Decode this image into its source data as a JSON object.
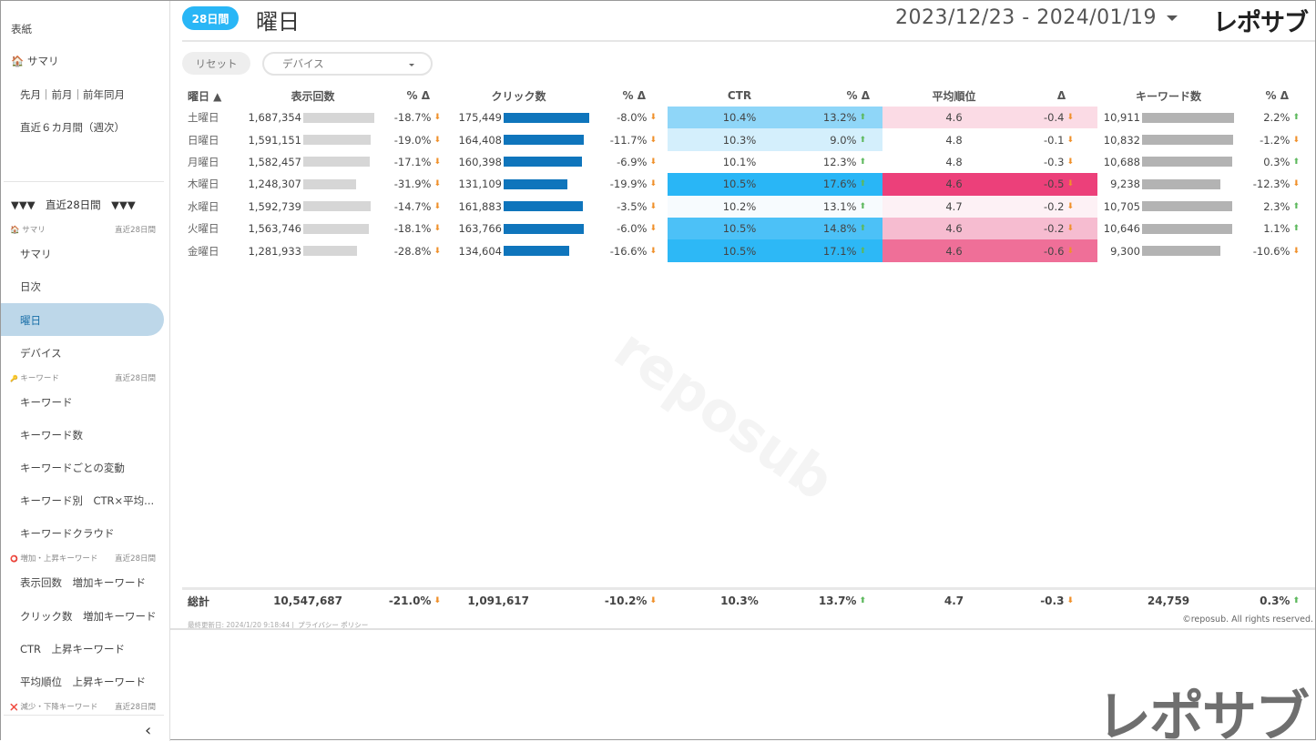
{
  "sidebar": {
    "cover": "表紙",
    "summary_top": "🏠 サマリ",
    "monthly": "先月｜前月｜前年同月",
    "six_months": "直近６カ月間（週次）",
    "period_header": "▼▼▼　直近28日間　▼▼▼",
    "sections": [
      {
        "icon": "🏠",
        "label": "サマリ",
        "period": "直近28日間"
      },
      {
        "icon": "🔑",
        "label": "キーワード",
        "period": "直近28日間"
      },
      {
        "icon": "⭕",
        "label": "増加・上昇キーワード",
        "period": "直近28日間"
      },
      {
        "icon": "❌",
        "label": "減少・下降キーワード",
        "period": "直近28日間"
      }
    ],
    "items": [
      "サマリ",
      "日次",
      "曜日",
      "デバイス",
      "キーワード",
      "キーワード数",
      "キーワードごとの変動",
      "キーワード別　CTR×平均...",
      "キーワードクラウド",
      "表示回数　増加キーワード",
      "クリック数　増加キーワード",
      "CTR　上昇キーワード",
      "平均順位　上昇キーワード"
    ],
    "active_item": "曜日",
    "collapse": "‹"
  },
  "header": {
    "badge": "28日間",
    "title": "曜日",
    "date_range": "2023/12/23 - 2024/01/19",
    "logo": "レポサブ"
  },
  "filters": {
    "reset": "リセット",
    "device": "デバイス"
  },
  "table": {
    "headers": [
      "曜日 ▲",
      "表示回数",
      "% Δ",
      "クリック数",
      "% Δ",
      "CTR",
      "% Δ",
      "平均順位",
      "Δ",
      "キーワード数",
      "% Δ"
    ],
    "bar_colors": {
      "impressions": "#d6d6d6",
      "clicks": "#0f75bc",
      "keywords": "#b3b3b3"
    },
    "rows": [
      {
        "day": "土曜日",
        "imp": "1,687,354",
        "imp_v": 1687354,
        "imp_pct": "-18.7%",
        "imp_dir": "dn",
        "clk": "175,449",
        "clk_v": 175449,
        "clk_pct": "-8.0%",
        "clk_dir": "dn",
        "ctr": "10.4%",
        "ctr_pct": "13.2%",
        "ctr_dir": "up",
        "ctr_bg": "#8fd6f8",
        "rank": "4.6",
        "rank_d": "-0.4",
        "rank_dir": "dn",
        "rank_bg": "#fbdbe5",
        "kw": "10,911",
        "kw_v": 10911,
        "kw_pct": "2.2%",
        "kw_dir": "up"
      },
      {
        "day": "日曜日",
        "imp": "1,591,151",
        "imp_v": 1591151,
        "imp_pct": "-19.0%",
        "imp_dir": "dn",
        "clk": "164,408",
        "clk_v": 164408,
        "clk_pct": "-11.7%",
        "clk_dir": "dn",
        "ctr": "10.3%",
        "ctr_pct": "9.0%",
        "ctr_dir": "up",
        "ctr_bg": "#d4effc",
        "rank": "4.8",
        "rank_d": "-0.1",
        "rank_dir": "dn",
        "rank_bg": "#ffffff",
        "kw": "10,832",
        "kw_v": 10832,
        "kw_pct": "-1.2%",
        "kw_dir": "dn"
      },
      {
        "day": "月曜日",
        "imp": "1,582,457",
        "imp_v": 1582457,
        "imp_pct": "-17.1%",
        "imp_dir": "dn",
        "clk": "160,398",
        "clk_v": 160398,
        "clk_pct": "-6.9%",
        "clk_dir": "dn",
        "ctr": "10.1%",
        "ctr_pct": "12.3%",
        "ctr_dir": "up",
        "ctr_bg": "#ffffff",
        "rank": "4.8",
        "rank_d": "-0.3",
        "rank_dir": "dn",
        "rank_bg": "#ffffff",
        "kw": "10,688",
        "kw_v": 10688,
        "kw_pct": "0.3%",
        "kw_dir": "up"
      },
      {
        "day": "木曜日",
        "imp": "1,248,307",
        "imp_v": 1248307,
        "imp_pct": "-31.9%",
        "imp_dir": "dn",
        "clk": "131,109",
        "clk_v": 131109,
        "clk_pct": "-19.9%",
        "clk_dir": "dn",
        "ctr": "10.5%",
        "ctr_pct": "17.6%",
        "ctr_dir": "up",
        "ctr_bg": "#29b6f6",
        "rank": "4.6",
        "rank_d": "-0.5",
        "rank_dir": "dn",
        "rank_bg": "#ec407a",
        "kw": "9,238",
        "kw_v": 9238,
        "kw_pct": "-12.3%",
        "kw_dir": "dn"
      },
      {
        "day": "水曜日",
        "imp": "1,592,739",
        "imp_v": 1592739,
        "imp_pct": "-14.7%",
        "imp_dir": "dn",
        "clk": "161,883",
        "clk_v": 161883,
        "clk_pct": "-3.5%",
        "clk_dir": "dn",
        "ctr": "10.2%",
        "ctr_pct": "13.1%",
        "ctr_dir": "up",
        "ctr_bg": "#f7fbfe",
        "rank": "4.7",
        "rank_d": "-0.2",
        "rank_dir": "dn",
        "rank_bg": "#fdf1f5",
        "kw": "10,705",
        "kw_v": 10705,
        "kw_pct": "2.3%",
        "kw_dir": "up"
      },
      {
        "day": "火曜日",
        "imp": "1,563,746",
        "imp_v": 1563746,
        "imp_pct": "-18.1%",
        "imp_dir": "dn",
        "clk": "163,766",
        "clk_v": 163766,
        "clk_pct": "-6.0%",
        "clk_dir": "dn",
        "ctr": "10.5%",
        "ctr_pct": "14.8%",
        "ctr_dir": "up",
        "ctr_bg": "#4cc1f7",
        "rank": "4.6",
        "rank_d": "-0.2",
        "rank_dir": "dn",
        "rank_bg": "#f6bcd0",
        "kw": "10,646",
        "kw_v": 10646,
        "kw_pct": "1.1%",
        "kw_dir": "up"
      },
      {
        "day": "金曜日",
        "imp": "1,281,933",
        "imp_v": 1281933,
        "imp_pct": "-28.8%",
        "imp_dir": "dn",
        "clk": "134,604",
        "clk_v": 134604,
        "clk_pct": "-16.6%",
        "clk_dir": "dn",
        "ctr": "10.5%",
        "ctr_pct": "17.1%",
        "ctr_dir": "up",
        "ctr_bg": "#2db8f6",
        "rank": "4.6",
        "rank_d": "-0.6",
        "rank_dir": "dn",
        "rank_bg": "#ef6f98",
        "kw": "9,300",
        "kw_v": 9300,
        "kw_pct": "-10.6%",
        "kw_dir": "dn"
      }
    ],
    "total": {
      "label": "総計",
      "imp": "10,547,687",
      "imp_pct": "-21.0%",
      "imp_dir": "dn",
      "clk": "1,091,617",
      "clk_pct": "-10.2%",
      "clk_dir": "dn",
      "ctr": "10.3%",
      "ctr_pct": "13.7%",
      "ctr_dir": "up",
      "rank": "4.7",
      "rank_d": "-0.3",
      "rank_dir": "dn",
      "kw": "24,759",
      "kw_pct": "0.3%",
      "kw_dir": "up"
    }
  },
  "footer": {
    "updated": "最終更新日: 2024/1/20 9:18:44 |",
    "privacy": "プライバシー ポリシー",
    "copyright": "©reposub. All rights reserved."
  },
  "watermark": "reposub"
}
